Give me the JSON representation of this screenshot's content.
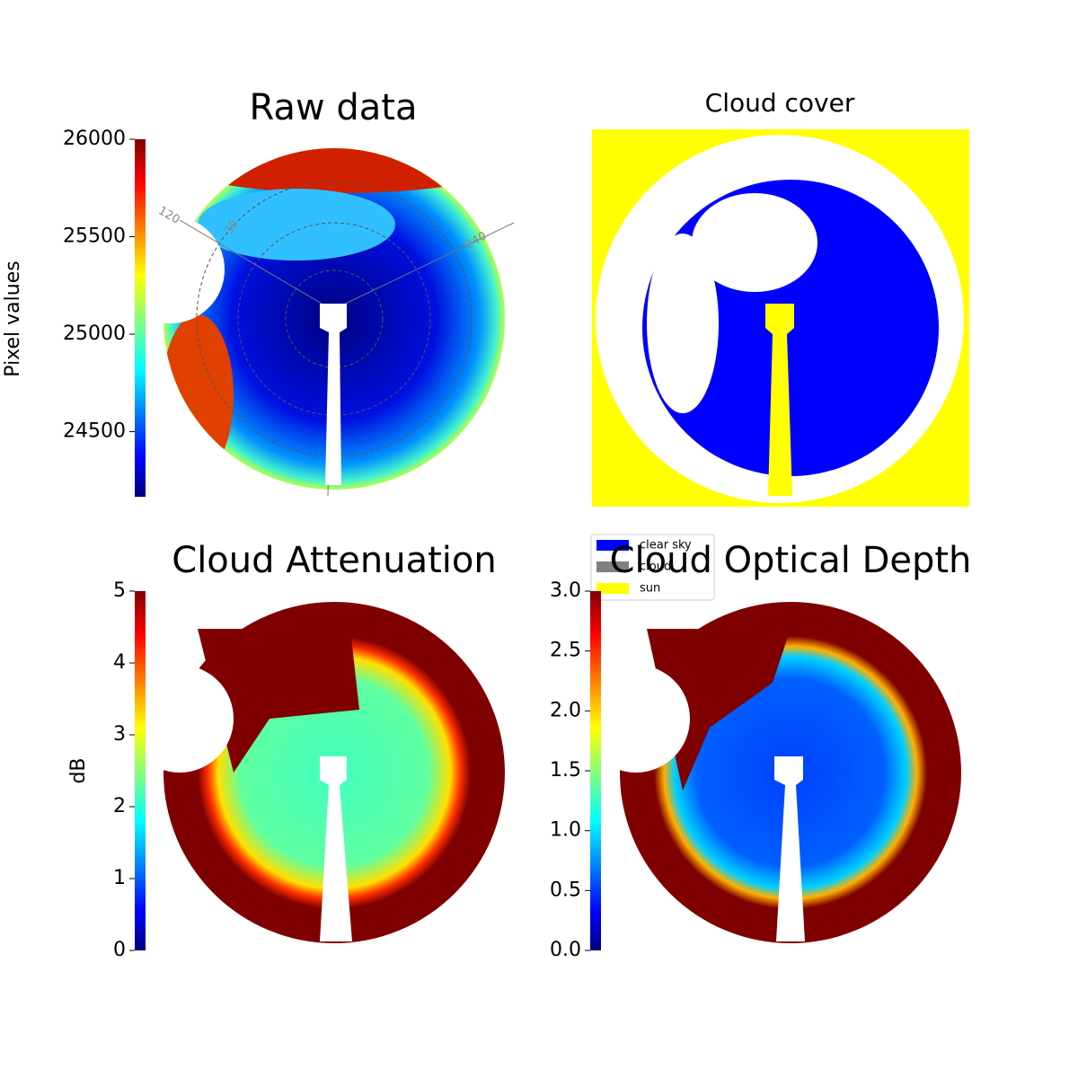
{
  "chart_data": [
    {
      "type": "image",
      "title": "Raw data",
      "colormap": "jet",
      "colorbar": {
        "label": "Pixel values",
        "lim": [
          24166,
          26000
        ],
        "ticks": [
          24500,
          25000,
          25500,
          26000
        ]
      },
      "annotations": [
        "120",
        "30",
        "240"
      ]
    },
    {
      "type": "image",
      "title": "Cloud cover",
      "legend": [
        {
          "name": "clear sky",
          "color": "#0000ff"
        },
        {
          "name": "cloud",
          "color": "#808080"
        },
        {
          "name": "sun",
          "color": "#ffff00"
        }
      ]
    },
    {
      "type": "image",
      "title": "Cloud Attenuation",
      "colormap": "jet",
      "colorbar": {
        "label": "dB",
        "lim": [
          0,
          5
        ],
        "ticks": [
          0,
          1,
          2,
          3,
          4,
          5
        ]
      }
    },
    {
      "type": "image",
      "title": "Cloud Optical Depth",
      "colormap": "jet",
      "colorbar": {
        "lim": [
          0,
          3
        ],
        "ticks": [
          {
            "value": 0,
            "label": "0.0"
          },
          0.5,
          {
            "value": 1,
            "label": "1.0"
          },
          1.5,
          {
            "value": 2,
            "label": "2.0"
          },
          2.5,
          {
            "value": 3,
            "label": "3.0"
          }
        ]
      }
    }
  ]
}
